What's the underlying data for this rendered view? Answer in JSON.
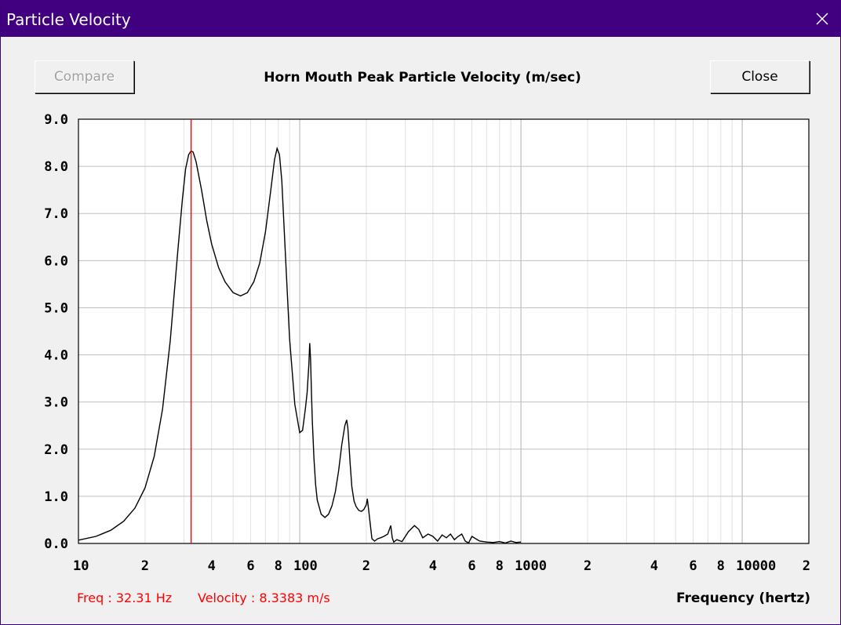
{
  "window": {
    "title": "Particle Velocity"
  },
  "toolbar": {
    "compare_label": "Compare",
    "close_label": "Close"
  },
  "readout": {
    "freq": "Freq : 32.31 Hz",
    "velocity": "Velocity : 8.3383 m/s"
  },
  "colors": {
    "titlebar": "#40007f",
    "cursor": "#ff0000",
    "grid": "#c0c0c0",
    "curve": "#000000"
  },
  "chart_data": {
    "type": "line",
    "title": "Horn Mouth Peak Particle Velocity (m/sec)",
    "xlabel": "Frequency (hertz)",
    "ylabel": "",
    "x_scale": "log",
    "xlim": [
      10,
      20000
    ],
    "ylim": [
      0,
      9
    ],
    "grid": true,
    "y_ticks": [
      "0.0",
      "1.0",
      "2.0",
      "3.0",
      "4.0",
      "5.0",
      "6.0",
      "7.0",
      "8.0",
      "9.0"
    ],
    "x_ticks": [
      {
        "value": 10,
        "label": "10"
      },
      {
        "value": 20,
        "label": "2"
      },
      {
        "value": 40,
        "label": "4"
      },
      {
        "value": 60,
        "label": "6"
      },
      {
        "value": 80,
        "label": "8"
      },
      {
        "value": 100,
        "label": "100"
      },
      {
        "value": 200,
        "label": "2"
      },
      {
        "value": 400,
        "label": "4"
      },
      {
        "value": 600,
        "label": "6"
      },
      {
        "value": 800,
        "label": "8"
      },
      {
        "value": 1000,
        "label": "1000"
      },
      {
        "value": 2000,
        "label": "2"
      },
      {
        "value": 4000,
        "label": "4"
      },
      {
        "value": 6000,
        "label": "6"
      },
      {
        "value": 8000,
        "label": "8"
      },
      {
        "value": 10000,
        "label": "10000"
      },
      {
        "value": 20000,
        "label": "2"
      }
    ],
    "cursor_x": 32.31,
    "series": [
      {
        "x": [
          10,
          12,
          14,
          16,
          18,
          20,
          22,
          24,
          26,
          28,
          29.5,
          30.5,
          31.5,
          32.3,
          33,
          34,
          36,
          38,
          40,
          43,
          46,
          50,
          54,
          58,
          62,
          66,
          70,
          74,
          77,
          79,
          81,
          83,
          86,
          90,
          95,
          100,
          103,
          106,
          108,
          110,
          111,
          112,
          113,
          114,
          116,
          118,
          120,
          125,
          130,
          135,
          140,
          145,
          150,
          155,
          160,
          163,
          165,
          167,
          169,
          172,
          176,
          180,
          185,
          190,
          195,
          200,
          202,
          205,
          208,
          212,
          218,
          225,
          232,
          240,
          250,
          258,
          262,
          266,
          275,
          290,
          310,
          330,
          345,
          360,
          380,
          400,
          420,
          440,
          460,
          480,
          500,
          520,
          540,
          560,
          580,
          600,
          650,
          700,
          750,
          800,
          850,
          900,
          950,
          1000
        ],
        "y": [
          0.07,
          0.15,
          0.28,
          0.47,
          0.75,
          1.18,
          1.85,
          2.85,
          4.3,
          6.1,
          7.3,
          7.95,
          8.25,
          8.33,
          8.3,
          8.1,
          7.5,
          6.85,
          6.35,
          5.85,
          5.55,
          5.32,
          5.25,
          5.32,
          5.55,
          5.95,
          6.6,
          7.5,
          8.15,
          8.38,
          8.25,
          7.7,
          6.2,
          4.35,
          2.95,
          2.35,
          2.4,
          2.85,
          3.2,
          3.8,
          4.25,
          3.9,
          3.2,
          2.6,
          1.8,
          1.25,
          0.92,
          0.62,
          0.55,
          0.62,
          0.8,
          1.1,
          1.55,
          2.1,
          2.5,
          2.62,
          2.45,
          2.1,
          1.7,
          1.2,
          0.9,
          0.78,
          0.7,
          0.68,
          0.72,
          0.82,
          0.95,
          0.7,
          0.45,
          0.1,
          0.05,
          0.1,
          0.12,
          0.15,
          0.2,
          0.38,
          0.12,
          0.03,
          0.08,
          0.04,
          0.25,
          0.38,
          0.3,
          0.12,
          0.2,
          0.15,
          0.05,
          0.18,
          0.12,
          0.2,
          0.08,
          0.15,
          0.2,
          0.05,
          0.01,
          0.15,
          0.05,
          0.03,
          0.02,
          0.04,
          0.01,
          0.05,
          0.02,
          0.03
        ]
      }
    ]
  }
}
